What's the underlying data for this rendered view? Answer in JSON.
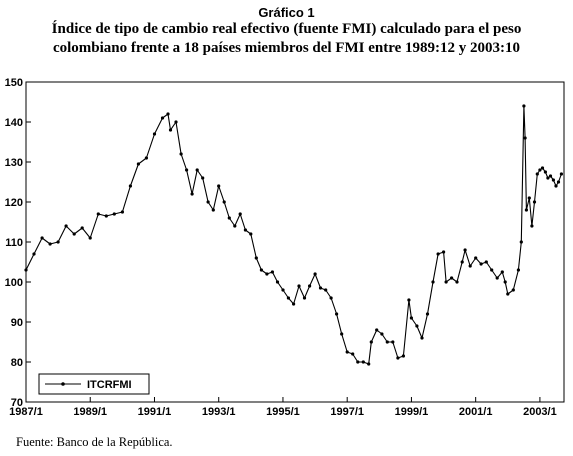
{
  "caption": {
    "label": "Gráfico 1",
    "title_line1": "Índice de tipo de cambio real efectivo (fuente FMI) calculado para el peso",
    "title_line2": "colombiano frente a 18 países miembros del FMI entre 1989:12 y 2003:10"
  },
  "source": "Fuente: Banco de la República.",
  "chart_data": {
    "type": "line",
    "ylim": [
      70,
      150
    ],
    "xlim": [
      1987.0,
      2003.75
    ],
    "yticks": [
      70,
      80,
      90,
      100,
      110,
      120,
      130,
      140,
      150
    ],
    "xticks": [
      {
        "value": 1987,
        "label": "1987/1"
      },
      {
        "value": 1989,
        "label": "1989/1"
      },
      {
        "value": 1991,
        "label": "1991/1"
      },
      {
        "value": 1993,
        "label": "1993/1"
      },
      {
        "value": 1995,
        "label": "1995/1"
      },
      {
        "value": 1997,
        "label": "1997/1"
      },
      {
        "value": 1999,
        "label": "1999/1"
      },
      {
        "value": 2001,
        "label": "2001/1"
      },
      {
        "value": 2003,
        "label": "2003/1"
      }
    ],
    "grid": false,
    "legend_position": "bottom-left",
    "series": [
      {
        "name": "ITCRFMI",
        "color": "#000000",
        "points": [
          [
            1987.0,
            103.0
          ],
          [
            1987.25,
            107.0
          ],
          [
            1987.5,
            111.0
          ],
          [
            1987.75,
            109.5
          ],
          [
            1988.0,
            110.0
          ],
          [
            1988.25,
            114.0
          ],
          [
            1988.5,
            112.0
          ],
          [
            1988.75,
            113.5
          ],
          [
            1989.0,
            111.0
          ],
          [
            1989.25,
            117.0
          ],
          [
            1989.5,
            116.5
          ],
          [
            1989.75,
            117.0
          ],
          [
            1990.0,
            117.5
          ],
          [
            1990.25,
            124.0
          ],
          [
            1990.5,
            129.5
          ],
          [
            1990.75,
            131.0
          ],
          [
            1991.0,
            137.0
          ],
          [
            1991.25,
            141.0
          ],
          [
            1991.42,
            142.0
          ],
          [
            1991.5,
            138.0
          ],
          [
            1991.67,
            140.0
          ],
          [
            1991.83,
            132.0
          ],
          [
            1992.0,
            128.0
          ],
          [
            1992.17,
            122.0
          ],
          [
            1992.33,
            128.0
          ],
          [
            1992.5,
            126.0
          ],
          [
            1992.67,
            120.0
          ],
          [
            1992.83,
            118.0
          ],
          [
            1993.0,
            124.0
          ],
          [
            1993.17,
            120.0
          ],
          [
            1993.33,
            116.0
          ],
          [
            1993.5,
            114.0
          ],
          [
            1993.67,
            117.0
          ],
          [
            1993.83,
            113.0
          ],
          [
            1994.0,
            112.0
          ],
          [
            1994.17,
            106.0
          ],
          [
            1994.33,
            103.0
          ],
          [
            1994.5,
            102.0
          ],
          [
            1994.67,
            102.5
          ],
          [
            1994.83,
            100.0
          ],
          [
            1995.0,
            98.0
          ],
          [
            1995.17,
            96.0
          ],
          [
            1995.33,
            94.5
          ],
          [
            1995.5,
            99.0
          ],
          [
            1995.67,
            96.0
          ],
          [
            1995.83,
            99.0
          ],
          [
            1996.0,
            102.0
          ],
          [
            1996.17,
            98.5
          ],
          [
            1996.33,
            98.0
          ],
          [
            1996.5,
            96.0
          ],
          [
            1996.67,
            92.0
          ],
          [
            1996.83,
            87.0
          ],
          [
            1997.0,
            82.5
          ],
          [
            1997.17,
            82.0
          ],
          [
            1997.33,
            80.0
          ],
          [
            1997.5,
            80.0
          ],
          [
            1997.67,
            79.5
          ],
          [
            1997.75,
            85.0
          ],
          [
            1997.92,
            88.0
          ],
          [
            1998.08,
            87.0
          ],
          [
            1998.25,
            85.0
          ],
          [
            1998.42,
            85.0
          ],
          [
            1998.58,
            81.0
          ],
          [
            1998.75,
            81.5
          ],
          [
            1998.92,
            95.5
          ],
          [
            1999.0,
            91.0
          ],
          [
            1999.17,
            89.0
          ],
          [
            1999.33,
            86.0
          ],
          [
            1999.5,
            92.0
          ],
          [
            1999.67,
            100.0
          ],
          [
            1999.83,
            107.0
          ],
          [
            2000.0,
            107.5
          ],
          [
            2000.08,
            100.0
          ],
          [
            2000.25,
            101.0
          ],
          [
            2000.42,
            100.0
          ],
          [
            2000.58,
            105.0
          ],
          [
            2000.67,
            108.0
          ],
          [
            2000.83,
            104.0
          ],
          [
            2001.0,
            106.0
          ],
          [
            2001.17,
            104.5
          ],
          [
            2001.33,
            105.0
          ],
          [
            2001.5,
            103.0
          ],
          [
            2001.67,
            101.0
          ],
          [
            2001.83,
            102.5
          ],
          [
            2001.92,
            100.0
          ],
          [
            2002.0,
            97.0
          ],
          [
            2002.17,
            98.0
          ],
          [
            2002.33,
            103.0
          ],
          [
            2002.42,
            110.0
          ],
          [
            2002.5,
            144.0
          ],
          [
            2002.54,
            136.0
          ],
          [
            2002.58,
            118.0
          ],
          [
            2002.67,
            121.0
          ],
          [
            2002.75,
            114.0
          ],
          [
            2002.83,
            120.0
          ],
          [
            2002.92,
            127.0
          ],
          [
            2003.0,
            128.0
          ],
          [
            2003.08,
            128.5
          ],
          [
            2003.17,
            127.5
          ],
          [
            2003.25,
            126.0
          ],
          [
            2003.33,
            126.5
          ],
          [
            2003.42,
            125.5
          ],
          [
            2003.5,
            124.0
          ],
          [
            2003.58,
            125.0
          ],
          [
            2003.67,
            127.0
          ]
        ]
      }
    ]
  }
}
